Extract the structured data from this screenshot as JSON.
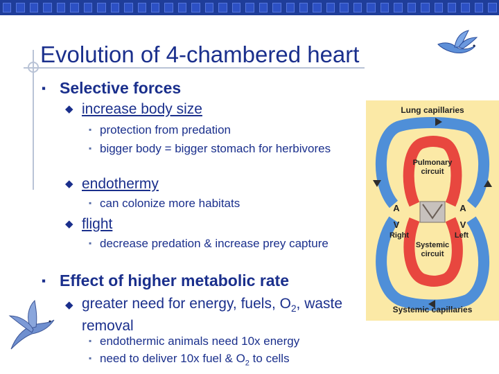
{
  "slide": {
    "title": "Evolution of 4-chambered heart",
    "sections": [
      {
        "heading": "Selective forces",
        "items": [
          {
            "label": "increase body size",
            "points": [
              "protection from predation",
              "bigger body = bigger stomach for herbivores"
            ]
          },
          {
            "label": "endothermy",
            "points": [
              "can colonize more habitats"
            ]
          },
          {
            "label": "flight",
            "points": [
              "decrease predation & increase prey capture"
            ]
          }
        ]
      },
      {
        "heading": "Effect of higher metabolic rate",
        "items": [
          {
            "label_pre": "greater need for energy, fuels, O",
            "label_sub": "2",
            "label_post": ", waste removal",
            "points": [
              {
                "text": "endothermic animals need 10x energy"
              },
              {
                "pre": "need to deliver 10x fuel & O",
                "sub": "2",
                "post": " to cells"
              }
            ]
          }
        ]
      }
    ]
  },
  "diagram": {
    "labels": {
      "top": "Lung capillaries",
      "pulmonary": "Pulmonary circuit",
      "a_left": "A",
      "a_right": "A",
      "v_left": "V",
      "v_right": "V",
      "right": "Right",
      "left": "Left",
      "systemic": "Systemic circuit",
      "bottom": "Systemic capillaries"
    }
  },
  "icons": [
    "bird-icon",
    "bird-icon"
  ],
  "colors": {
    "title": "#1a2f8c",
    "topbar": "#1f3d99",
    "diagram_bg": "#fbe9a6",
    "oxygenated": "#e8473f",
    "deoxygenated": "#4f8fd8"
  }
}
